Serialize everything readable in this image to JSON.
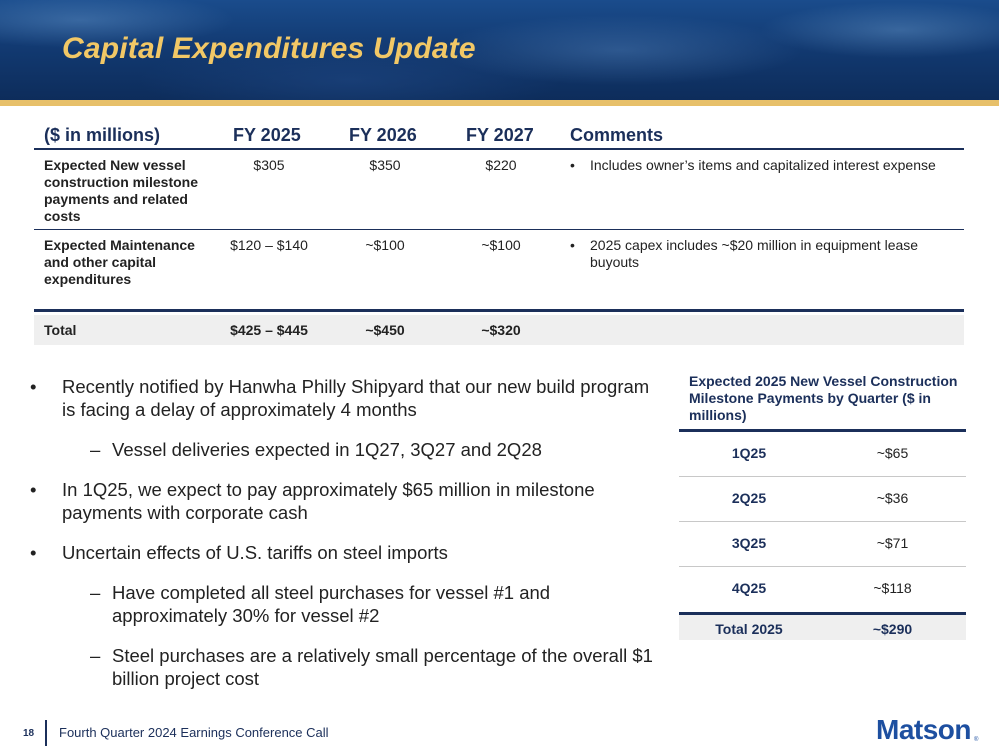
{
  "header": {
    "title": "Capital Expenditures Update"
  },
  "capex_table": {
    "columns": [
      "($ in millions)",
      "FY 2025",
      "FY 2026",
      "FY 2027",
      "Comments"
    ],
    "rows": [
      {
        "label": "Expected New vessel construction milestone payments and related costs",
        "fy2025": "$305",
        "fy2026": "$350",
        "fy2027": "$220",
        "comment": "Includes owner’s items and capitalized interest expense"
      },
      {
        "label": "Expected Maintenance and other capital expenditures",
        "fy2025": "$120 – $140",
        "fy2026": "~$100",
        "fy2027": "~$100",
        "comment": "2025 capex includes ~$20 million in equipment lease buyouts"
      }
    ],
    "total": {
      "label": "Total",
      "fy2025": "$425 – $445",
      "fy2026": "~$450",
      "fy2027": "~$320"
    },
    "bullet_glyph": "•"
  },
  "bullets": [
    {
      "text": "Recently notified by Hanwha Philly Shipyard that our new build program is facing a delay of approximately 4 months"
    },
    {
      "text": "Vessel deliveries expected in 1Q27, 3Q27 and 2Q28"
    },
    {
      "text": "In 1Q25, we expect to pay approximately $65 million in milestone payments with corporate cash"
    },
    {
      "text": "Uncertain effects of U.S. tariffs on steel imports"
    },
    {
      "text": "Have completed all steel purchases for vessel #1 and approximately 30% for vessel #2"
    },
    {
      "text": "Steel purchases are a relatively small percentage of the overall $1 billion project cost"
    }
  ],
  "glyphs": {
    "bullet": "•",
    "dash": "–"
  },
  "milestone_table": {
    "title": "Expected 2025 New Vessel Construction Milestone Payments by Quarter ($ in millions)",
    "rows": [
      {
        "quarter": "1Q25",
        "value": "~$65"
      },
      {
        "quarter": "2Q25",
        "value": "~$36"
      },
      {
        "quarter": "3Q25",
        "value": "~$71"
      },
      {
        "quarter": "4Q25",
        "value": "~$118"
      }
    ],
    "total": {
      "label": "Total 2025",
      "value": "~$290"
    }
  },
  "footer": {
    "page_number": "18",
    "text": "Fourth Quarter 2024 Earnings Conference Call",
    "logo": "Matson",
    "logo_mark": "®"
  }
}
